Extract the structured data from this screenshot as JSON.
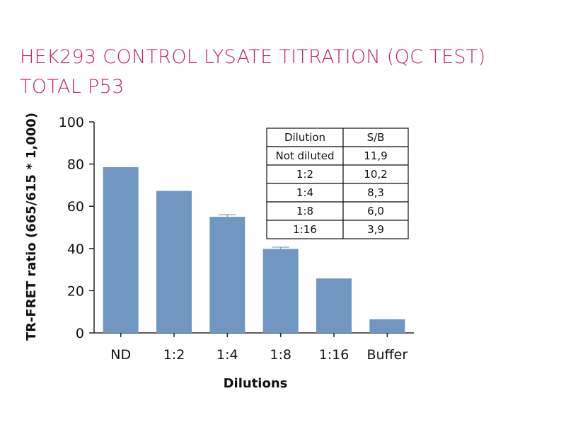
{
  "title": {
    "line1": "HEK293 CONTROL LYSATE TITRATION (QC TEST)",
    "line2": "TOTAL P53"
  },
  "colors": {
    "title": "#c8245a",
    "bar": "#7096c2",
    "axis": "#222222",
    "error_bar": "#6a89b0"
  },
  "chart_data": {
    "type": "bar",
    "categories": [
      "ND",
      "1:2",
      "1:4",
      "1:8",
      "1:16",
      "Buffer"
    ],
    "values": [
      78.5,
      67.3,
      55.0,
      39.8,
      25.8,
      6.5
    ],
    "errors": [
      0,
      0,
      1.0,
      0.8,
      0,
      0
    ],
    "xlabel": "Dilutions",
    "ylabel": "TR-FRET ratio (665/615 * 1,000)",
    "ylim": [
      0,
      100
    ],
    "yticks": [
      0,
      20,
      40,
      60,
      80,
      100
    ],
    "grid": false,
    "inset_table": {
      "headers": [
        "Dilution",
        "S/B"
      ],
      "rows": [
        [
          "Not diluted",
          "11,9"
        ],
        [
          "1:2",
          "10,2"
        ],
        [
          "1:4",
          "8,3"
        ],
        [
          "1:8",
          "6,0"
        ],
        [
          "1:16",
          "3,9"
        ]
      ]
    }
  }
}
